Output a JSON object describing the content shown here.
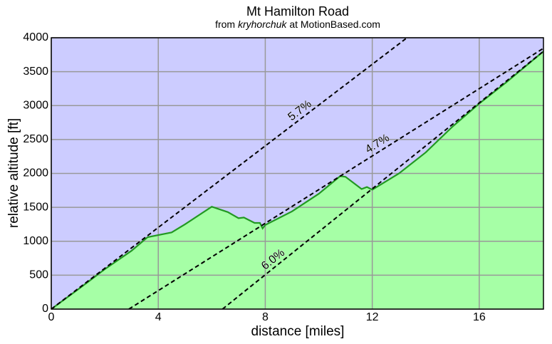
{
  "chart_data": {
    "type": "area",
    "title": "Mt Hamilton Road",
    "subtitle": {
      "prefix": "from",
      "author": "kryhorchuk",
      "suffix": "at MotionBased.com"
    },
    "x_label": "distance [miles]",
    "y_label": "relative altitude [ft]",
    "x": [
      0,
      1,
      2,
      3,
      3.6,
      4.5,
      5,
      6,
      6.6,
      7,
      7.2,
      7.6,
      7.8,
      7.9,
      8,
      9,
      10,
      10.8,
      11,
      11.6,
      11.8,
      12,
      13,
      14,
      15,
      16,
      17,
      18.4
    ],
    "series": [
      {
        "name": "altitude",
        "color": "#229922",
        "fill": "#a6ffa6",
        "values": [
          0,
          290,
          588,
          860,
          1060,
          1130,
          1250,
          1510,
          1430,
          1340,
          1350,
          1270,
          1270,
          1190,
          1240,
          1440,
          1700,
          1960,
          1950,
          1770,
          1800,
          1760,
          2000,
          2310,
          2690,
          3030,
          3340,
          3800
        ]
      }
    ],
    "grade_lines": [
      {
        "label": "5.7%",
        "x": [
          0,
          13.3
        ],
        "y": [
          0,
          4000
        ],
        "label_at": 9.3
      },
      {
        "label": "4.7%",
        "x": [
          2.9,
          18.4
        ],
        "y": [
          0,
          3845
        ],
        "label_at": 12.2
      },
      {
        "label": "6.0%",
        "x": [
          6.4,
          18.4
        ],
        "y": [
          0,
          3800
        ],
        "label_at": 8.3
      }
    ],
    "background": "#ccccff",
    "xlim": [
      0,
      18.4
    ],
    "xticks": [
      0,
      4,
      8,
      12,
      16
    ],
    "ylim": [
      0,
      4000
    ],
    "yticks": [
      0,
      500,
      1000,
      1500,
      2000,
      2500,
      3000,
      3500,
      4000
    ],
    "grid": true
  }
}
